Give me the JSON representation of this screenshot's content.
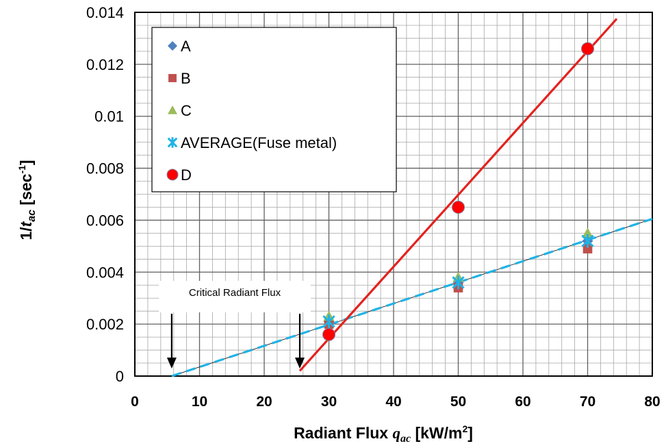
{
  "chart_data": {
    "type": "scatter",
    "xlim": [
      0,
      80
    ],
    "ylim": [
      0,
      0.014
    ],
    "x_ticks": [
      "0",
      "10",
      "20",
      "30",
      "40",
      "50",
      "60",
      "70",
      "80"
    ],
    "y_ticks": [
      "0",
      "0.002",
      "0.004",
      "0.006",
      "0.008",
      "0.01",
      "0.012",
      "0.014"
    ],
    "xlabel": {
      "main": "Radiant Flux ",
      "var": "q",
      "sub": "ac",
      "unit": " [kW/m",
      "sup": "2",
      "close": "]"
    },
    "ylabel": {
      "prefix": "1/",
      "var": "t",
      "sub": "ac",
      "unit": " [sec",
      "sup": "-1",
      "close": "]"
    },
    "grid": true,
    "legend_position": "top-left",
    "series": [
      {
        "name": "A",
        "marker": "diamond",
        "color": "#4F81BD",
        "x": [
          30,
          50,
          70
        ],
        "y": [
          0.0021,
          0.0036,
          0.0052
        ]
      },
      {
        "name": "B",
        "marker": "square",
        "color": "#C0504D",
        "x": [
          30,
          50,
          70
        ],
        "y": [
          0.002,
          0.0034,
          0.0049
        ]
      },
      {
        "name": "C",
        "marker": "triangle",
        "color": "#9BBB59",
        "x": [
          30,
          50,
          70
        ],
        "y": [
          0.0023,
          0.0038,
          0.0055
        ]
      },
      {
        "name": "AVERAGE(Fuse metal)",
        "marker": "asterisk",
        "color": "#1FB3E5",
        "x": [
          30,
          50,
          70
        ],
        "y": [
          0.0021,
          0.0036,
          0.0052
        ]
      },
      {
        "name": "D",
        "marker": "circle",
        "color": "#FF0000",
        "x": [
          30,
          50,
          70
        ],
        "y": [
          0.0016,
          0.0065,
          0.0126
        ]
      }
    ],
    "trendlines": [
      {
        "series": "AVERAGE(Fuse metal)",
        "style": "dashed",
        "color": "#1FB3E5",
        "x": [
          5.7,
          80
        ],
        "y": [
          0.0,
          0.00605
        ]
      },
      {
        "series": "D",
        "style": "solid",
        "color": "#E3221E",
        "x": [
          25.5,
          74.5
        ],
        "y": [
          0.0002,
          0.01375
        ]
      }
    ],
    "annotation": {
      "text": "Critical Radiant Flux",
      "arrows": [
        {
          "x": 5.7
        },
        {
          "x": 25.5
        }
      ]
    }
  }
}
